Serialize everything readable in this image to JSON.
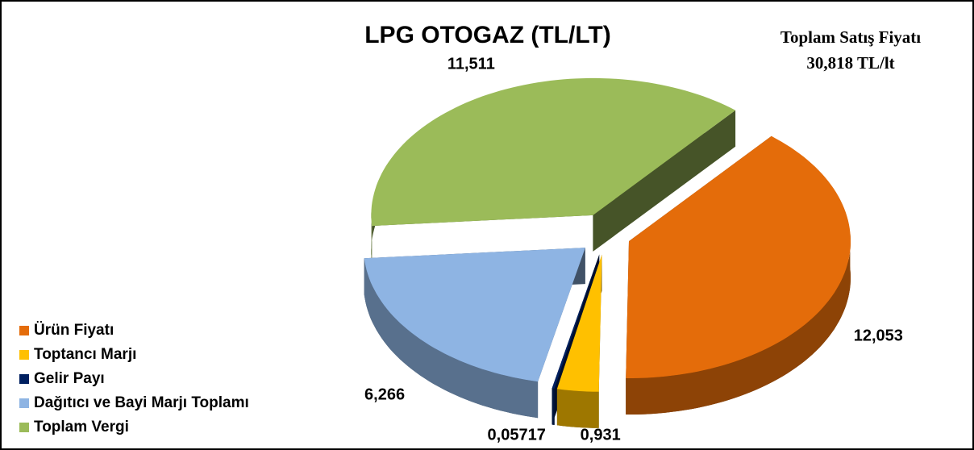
{
  "chart_data": {
    "type": "pie",
    "title": "LPG OTOGAZ (TL/LT)",
    "annotation": [
      "Toplam Satış Fiyatı",
      "30,818 TL/lt"
    ],
    "categories": [
      "Ürün Fiyatı",
      "Toptancı Marjı",
      "Gelir Payı",
      "Dağıtıcı ve Bayi Marjı Toplamı",
      "Toplam Vergi"
    ],
    "values": [
      12.053,
      0.931,
      0.05717,
      6.266,
      11.511
    ],
    "value_labels": [
      "12,053",
      "0,931",
      "0,05717",
      "6,266",
      "11,511"
    ],
    "colors": [
      "#e46c0a",
      "#ffc000",
      "#002060",
      "#8eb4e3",
      "#9bbb59"
    ],
    "legend": "bottom-left"
  }
}
